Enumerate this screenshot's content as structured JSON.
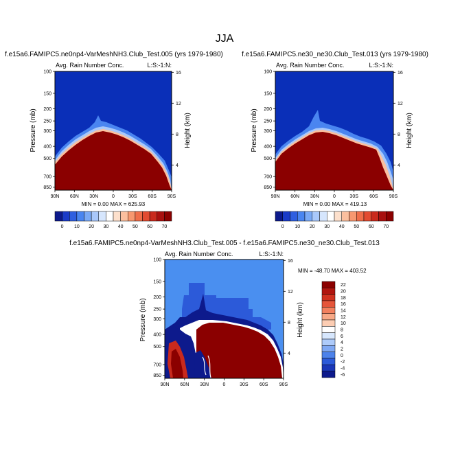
{
  "figure": {
    "title": "JJA"
  },
  "colors": {
    "deep_blue": "#0a2fb8",
    "dark_red": "#8b0000",
    "diff_background": "#4a8ff0"
  },
  "chart_data": [
    {
      "id": "panel1",
      "type": "heatmap",
      "title": "f.e15a6.FAMIPC5.ne0np4-VarMeshNH3.Club_Test.005 (yrs 1979-1980)",
      "subtitle_left": "Avg. Rain Number Conc.",
      "subtitle_right": "L:S:-1:N:",
      "ylabel": "Pressure (mb)",
      "ylabel_right": "Height (km)",
      "xticks": [
        "90N",
        "60N",
        "30N",
        "0",
        "30S",
        "60S",
        "90S"
      ],
      "yticks": [
        100,
        150,
        200,
        250,
        300,
        400,
        500,
        700,
        850
      ],
      "yticks_right": [
        16,
        12,
        8,
        4
      ],
      "ylim": [
        100,
        900
      ],
      "min_max_text": "MIN =   0.00  MAX = 625.93",
      "colorbar": {
        "orientation": "horizontal",
        "labels": [
          "0",
          "10",
          "20",
          "30",
          "40",
          "50",
          "60",
          "70"
        ],
        "colors": [
          "#0d1a8c",
          "#1a3bc8",
          "#2f5fe0",
          "#4a85f0",
          "#7aa9f5",
          "#a9c8fa",
          "#d6e6fd",
          "#ffffff",
          "#fde0cc",
          "#fbbf9e",
          "#f79870",
          "#ef6e4a",
          "#e24b31",
          "#c92a1d",
          "#a8100f",
          "#8b0000"
        ]
      }
    },
    {
      "id": "panel2",
      "type": "heatmap",
      "title": "f.e15a6.FAMIPC5.ne30_ne30.Club_Test.013 (yrs 1979-1980)",
      "subtitle_left": "Avg. Rain Number Conc.",
      "subtitle_right": "L:S:-1:N:",
      "ylabel": "Pressure (mb)",
      "ylabel_right": "Height (km)",
      "xticks": [
        "90N",
        "60N",
        "30N",
        "0",
        "30S",
        "60S",
        "90S"
      ],
      "yticks": [
        100,
        150,
        200,
        250,
        300,
        400,
        500,
        700,
        850
      ],
      "yticks_right": [
        16,
        12,
        8,
        4
      ],
      "ylim": [
        100,
        900
      ],
      "min_max_text": "MIN =   0.00  MAX = 419.13",
      "colorbar": {
        "orientation": "horizontal",
        "labels": [
          "0",
          "10",
          "20",
          "30",
          "40",
          "50",
          "60",
          "70"
        ],
        "colors": [
          "#0d1a8c",
          "#1a3bc8",
          "#2f5fe0",
          "#4a85f0",
          "#7aa9f5",
          "#a9c8fa",
          "#d6e6fd",
          "#ffffff",
          "#fde0cc",
          "#fbbf9e",
          "#f79870",
          "#ef6e4a",
          "#e24b31",
          "#c92a1d",
          "#a8100f",
          "#8b0000"
        ]
      }
    },
    {
      "id": "panel3",
      "type": "heatmap",
      "title": "f.e15a6.FAMIPC5.ne0np4-VarMeshNH3.Club_Test.005 - f.e15a6.FAMIPC5.ne30_ne30.Club_Test.013",
      "subtitle_left": "Avg. Rain Number Conc.",
      "subtitle_right": "L:S:-1:N:",
      "ylabel": "Pressure (mb)",
      "ylabel_right": "Height (km)",
      "xticks": [
        "90N",
        "60N",
        "30N",
        "0",
        "30S",
        "60S",
        "90S"
      ],
      "yticks": [
        100,
        150,
        200,
        250,
        300,
        400,
        500,
        700,
        850
      ],
      "yticks_right": [
        16,
        12,
        8,
        4
      ],
      "ylim": [
        100,
        900
      ],
      "min_max_text": "MIN = -48.70  MAX = 403.52",
      "colorbar": {
        "orientation": "vertical",
        "labels": [
          "22",
          "20",
          "18",
          "16",
          "14",
          "12",
          "10",
          "8",
          "6",
          "4",
          "2",
          "0",
          "-2",
          "-4",
          "-6"
        ],
        "colors": [
          "#8b0000",
          "#b0150f",
          "#d0311f",
          "#e5553a",
          "#f2805e",
          "#f8a987",
          "#fccdb3",
          "#ffffff",
          "#d7e7fd",
          "#aecbfa",
          "#7fa8f3",
          "#4d82ea",
          "#2c5ad9",
          "#1a37b8",
          "#0d1a8c"
        ]
      }
    }
  ]
}
